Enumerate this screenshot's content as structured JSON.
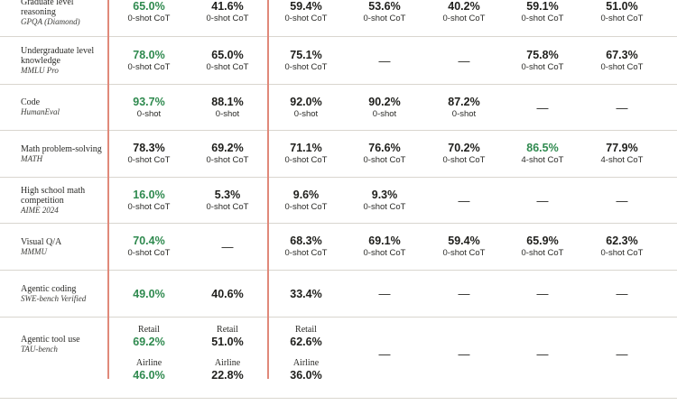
{
  "rows": [
    {
      "bench": "Graduate level reasoning",
      "sub": "GPQA (Diamond)",
      "cells": [
        {
          "v": "65.0%",
          "s": "0-shot CoT",
          "hl": true
        },
        {
          "v": "41.6%",
          "s": "0-shot CoT"
        },
        {
          "v": "59.4%",
          "s": "0-shot CoT"
        },
        {
          "v": "53.6%",
          "s": "0-shot CoT"
        },
        {
          "v": "40.2%",
          "s": "0-shot CoT"
        },
        {
          "v": "59.1%",
          "s": "0-shot CoT"
        },
        {
          "v": "51.0%",
          "s": "0-shot CoT"
        }
      ]
    },
    {
      "bench": "Undergraduate level knowledge",
      "sub": "MMLU Pro",
      "cells": [
        {
          "v": "78.0%",
          "s": "0-shot CoT",
          "hl": true
        },
        {
          "v": "65.0%",
          "s": "0-shot CoT"
        },
        {
          "v": "75.1%",
          "s": "0-shot CoT"
        },
        {
          "v": "—"
        },
        {
          "v": "—"
        },
        {
          "v": "75.8%",
          "s": "0-shot CoT"
        },
        {
          "v": "67.3%",
          "s": "0-shot CoT"
        }
      ]
    },
    {
      "bench": "Code",
      "sub": "HumanEval",
      "cells": [
        {
          "v": "93.7%",
          "s": "0-shot",
          "hl": true
        },
        {
          "v": "88.1%",
          "s": "0-shot"
        },
        {
          "v": "92.0%",
          "s": "0-shot"
        },
        {
          "v": "90.2%",
          "s": "0-shot"
        },
        {
          "v": "87.2%",
          "s": "0-shot"
        },
        {
          "v": "—"
        },
        {
          "v": "—"
        }
      ]
    },
    {
      "bench": "Math problem-solving",
      "sub": "MATH",
      "cells": [
        {
          "v": "78.3%",
          "s": "0-shot CoT"
        },
        {
          "v": "69.2%",
          "s": "0-shot CoT"
        },
        {
          "v": "71.1%",
          "s": "0-shot CoT"
        },
        {
          "v": "76.6%",
          "s": "0-shot CoT"
        },
        {
          "v": "70.2%",
          "s": "0-shot CoT"
        },
        {
          "v": "86.5%",
          "s": "4-shot CoT",
          "hl": true
        },
        {
          "v": "77.9%",
          "s": "4-shot CoT"
        }
      ]
    },
    {
      "bench": "High school math competition",
      "sub": "AIME 2024",
      "cells": [
        {
          "v": "16.0%",
          "s": "0-shot CoT",
          "hl": true
        },
        {
          "v": "5.3%",
          "s": "0-shot CoT"
        },
        {
          "v": "9.6%",
          "s": "0-shot CoT"
        },
        {
          "v": "9.3%",
          "s": "0-shot CoT"
        },
        {
          "v": "—"
        },
        {
          "v": "—"
        },
        {
          "v": "—"
        }
      ]
    },
    {
      "bench": "Visual Q/A",
      "sub": "MMMU",
      "cells": [
        {
          "v": "70.4%",
          "s": "0-shot CoT",
          "hl": true
        },
        {
          "v": "—"
        },
        {
          "v": "68.3%",
          "s": "0-shot CoT"
        },
        {
          "v": "69.1%",
          "s": "0-shot CoT"
        },
        {
          "v": "59.4%",
          "s": "0-shot CoT"
        },
        {
          "v": "65.9%",
          "s": "0-shot CoT"
        },
        {
          "v": "62.3%",
          "s": "0-shot CoT"
        }
      ]
    },
    {
      "bench": "Agentic coding",
      "sub": "SWE-bench Verified",
      "cells": [
        {
          "v": "49.0%",
          "hl": true
        },
        {
          "v": "40.6%"
        },
        {
          "v": "33.4%"
        },
        {
          "v": "—"
        },
        {
          "v": "—"
        },
        {
          "v": "—"
        },
        {
          "v": "—"
        }
      ]
    },
    {
      "bench": "Agentic tool use",
      "sub": "TAU-bench",
      "cells": [
        {
          "tau": true,
          "r_label": "Retail",
          "r": "69.2%",
          "a_label": "Airline",
          "a": "46.0%",
          "hl": true
        },
        {
          "tau": true,
          "r_label": "Retail",
          "r": "51.0%",
          "a_label": "Airline",
          "a": "22.8%"
        },
        {
          "tau": true,
          "r_label": "Retail",
          "r": "62.6%",
          "a_label": "Airline",
          "a": "36.0%"
        },
        {
          "v": "—"
        },
        {
          "v": "—"
        },
        {
          "v": "—"
        },
        {
          "v": "—"
        }
      ]
    }
  ],
  "colors": {
    "highlight": "#2f8a4f",
    "divider": "#e0897a",
    "rule": "#d9d6cf"
  }
}
